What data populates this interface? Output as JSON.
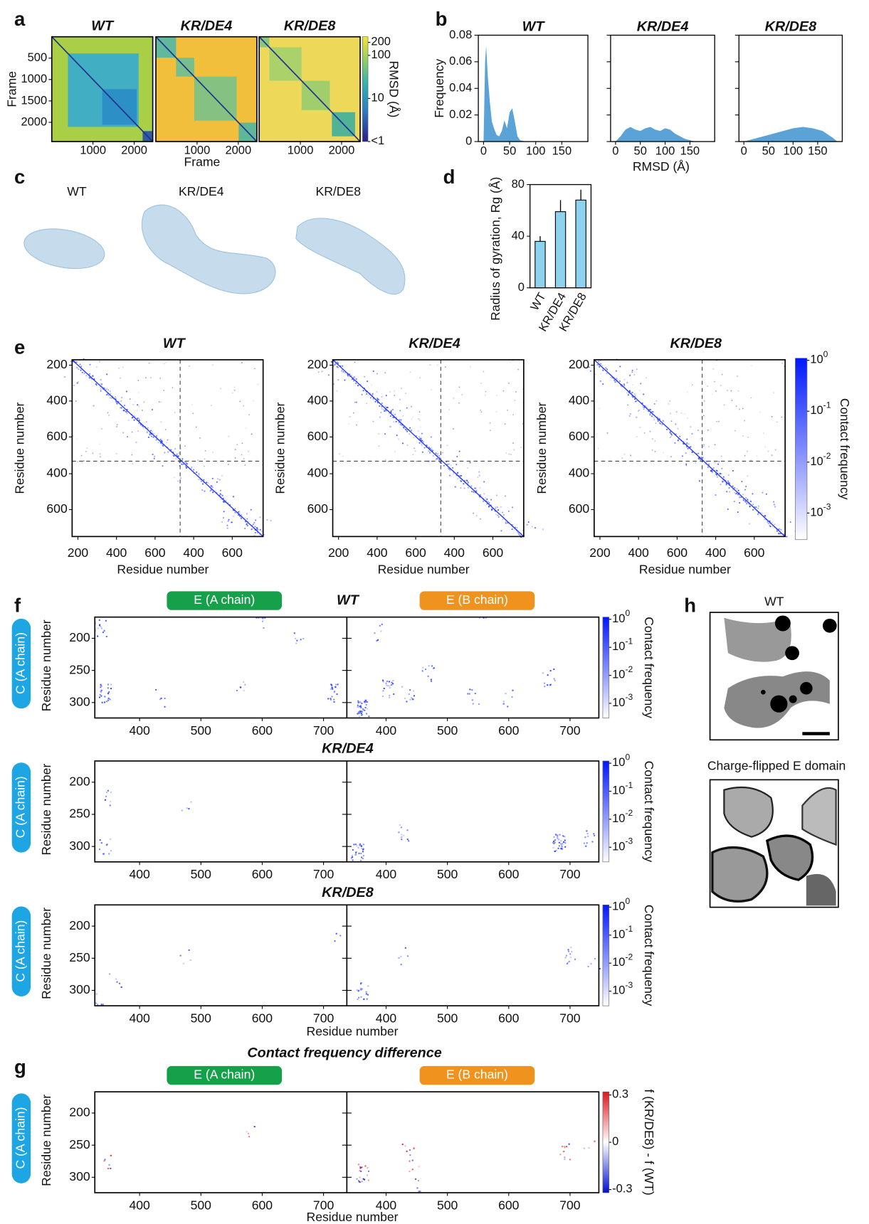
{
  "panels": {
    "a": {
      "label": "a",
      "titles": [
        "WT",
        "KR/DE4",
        "KR/DE8"
      ],
      "xlabel": "Frame",
      "ylabel": "Frame",
      "xlim": [
        0,
        2450
      ],
      "ylim": [
        0,
        2450
      ],
      "xticks": [
        1000,
        2000
      ],
      "yticks": [
        500,
        1000,
        1500,
        2000
      ],
      "colorbar": {
        "label": "RMSD (Å)",
        "log": true,
        "lim": [
          1,
          270
        ],
        "ticks": [
          200,
          100,
          10,
          {
            "value": 1,
            "label": "<1"
          }
        ]
      }
    },
    "b": {
      "label": "b"
    },
    "c": {
      "label": "c",
      "titles": [
        "WT",
        "KR/DE4",
        "KR/DE8"
      ]
    },
    "d": {
      "label": "d"
    },
    "e": {
      "label": "e",
      "titles": [
        "WT",
        "KR/DE4",
        "KR/DE8"
      ],
      "xlabel": "Residue number",
      "ylabel": "Residue number",
      "xaxes": [
        {
          "lim": [
            170,
            730
          ],
          "ticks": [
            200,
            400,
            600
          ]
        },
        {
          "lim": [
            330,
            760
          ],
          "ticks": [
            400,
            600
          ]
        }
      ],
      "yaxes": [
        {
          "lim": [
            170,
            735
          ],
          "ticks": [
            200,
            400,
            600
          ]
        },
        {
          "lim": [
            330,
            750
          ],
          "ticks": [
            400,
            600
          ]
        }
      ],
      "colorbar": {
        "label": "Contact frequency",
        "log": true,
        "lim": [
          0.0003,
          1.1
        ],
        "ticks": [
          {
            "value": 1,
            "label": "10",
            "sup": "0"
          },
          {
            "value": 0.1,
            "label": "10",
            "sup": "-1"
          },
          {
            "value": 0.01,
            "label": "10",
            "sup": "-2"
          },
          {
            "value": 0.001,
            "label": "10",
            "sup": "-3"
          }
        ]
      }
    },
    "f": {
      "label": "f",
      "pills": [
        "E (A chain)",
        "E (B chain)"
      ],
      "side_label": "C (A chain)",
      "titles": [
        "WT",
        "KR/DE4",
        "KR/DE8"
      ],
      "xlabel": "Residue number",
      "ylabel": "Residue number",
      "ylim": [
        167,
        324
      ],
      "yticks": [
        200,
        250,
        300
      ],
      "xaxes": [
        {
          "lim": [
            327,
            738
          ],
          "ticks": [
            400,
            500,
            600,
            700
          ]
        },
        {
          "lim": [
            336,
            747
          ],
          "ticks": [
            400,
            500,
            600,
            700
          ]
        }
      ],
      "colorbar": {
        "label": "Contact frequency",
        "log": true,
        "lim": [
          0.0003,
          1.2
        ],
        "ticks": [
          {
            "value": 1,
            "label": "10",
            "sup": "0"
          },
          {
            "value": 0.1,
            "label": "10",
            "sup": "-1"
          },
          {
            "value": 0.01,
            "label": "10",
            "sup": "-2"
          },
          {
            "value": 0.001,
            "label": "10",
            "sup": "-3"
          }
        ]
      }
    },
    "g": {
      "label": "g",
      "title": "Contact frequency difference",
      "pills": [
        "E (A chain)",
        "E (B chain)"
      ],
      "side_label": "C (A chain)",
      "xlabel": "Residue number",
      "ylabel": "Residue number",
      "ylim": [
        167,
        324
      ],
      "yticks": [
        200,
        250,
        300
      ],
      "xaxes": [
        {
          "lim": [
            327,
            738
          ],
          "ticks": [
            400,
            500,
            600,
            700
          ]
        },
        {
          "lim": [
            336,
            747
          ],
          "ticks": [
            400,
            500,
            600,
            700
          ]
        }
      ],
      "colorbar": {
        "label": "f (KR/DE8) - f (WT)",
        "log": false,
        "lim": [
          -0.32,
          0.32
        ],
        "ticks": [
          0.3,
          0,
          -0.3
        ]
      }
    },
    "h": {
      "label": "h",
      "titles": [
        "WT",
        "Charge-flipped E domain"
      ]
    }
  },
  "chart_data": [
    {
      "type": "area",
      "title": "WT",
      "ylabel": "Frequency",
      "color": "#5ba3d6",
      "x": [
        0,
        3,
        5,
        8,
        12,
        16,
        20,
        25,
        30,
        35,
        40,
        45,
        50,
        55,
        60,
        65,
        70,
        80
      ],
      "values": [
        0,
        0.06,
        0.072,
        0.05,
        0.03,
        0.015,
        0.01,
        0.005,
        0.004,
        0.008,
        0.016,
        0.01,
        0.022,
        0.025,
        0.015,
        0.004,
        0.001,
        0
      ],
      "xlim": [
        -10,
        200
      ],
      "ylim": [
        0,
        0.08
      ],
      "xticks": [
        0,
        50,
        100,
        150
      ],
      "yticks": [
        0,
        0.02,
        0.04,
        0.06,
        0.08
      ]
    },
    {
      "type": "area",
      "title": "KR/DE4",
      "xlabel": "RMSD (Å)",
      "color": "#5ba3d6",
      "x": [
        0,
        10,
        20,
        30,
        40,
        50,
        60,
        70,
        80,
        90,
        100,
        110,
        120,
        130,
        140,
        150,
        160
      ],
      "values": [
        0,
        0.004,
        0.009,
        0.011,
        0.009,
        0.008,
        0.01,
        0.011,
        0.009,
        0.008,
        0.01,
        0.009,
        0.006,
        0.004,
        0.002,
        0.001,
        0
      ],
      "xlim": [
        -10,
        200
      ],
      "ylim": [
        0,
        0.08
      ],
      "xticks": [
        0,
        50,
        100,
        150
      ],
      "yticks": [
        0,
        0.02,
        0.04,
        0.06,
        0.08
      ],
      "ytick_labels": false
    },
    {
      "type": "area",
      "title": "KR/DE8",
      "color": "#5ba3d6",
      "x": [
        0,
        20,
        40,
        60,
        80,
        100,
        120,
        140,
        160,
        180,
        190
      ],
      "values": [
        0,
        0.002,
        0.004,
        0.006,
        0.008,
        0.01,
        0.011,
        0.01,
        0.008,
        0.003,
        0
      ],
      "xlim": [
        -10,
        200
      ],
      "ylim": [
        0,
        0.08
      ],
      "xticks": [
        0,
        50,
        100,
        150
      ],
      "yticks": [
        0,
        0.02,
        0.04,
        0.06,
        0.08
      ],
      "ytick_labels": false
    },
    {
      "type": "bar",
      "ylabel": "Radius of gyration, Rg (Å)",
      "categories": [
        "WT",
        "KR/DE4",
        "KR/DE8"
      ],
      "values": [
        36,
        59,
        68
      ],
      "errors": [
        4,
        9,
        8
      ],
      "color": "#8dd3f0",
      "ylim": [
        0,
        80
      ],
      "yticks": [
        0,
        40,
        80
      ]
    }
  ]
}
